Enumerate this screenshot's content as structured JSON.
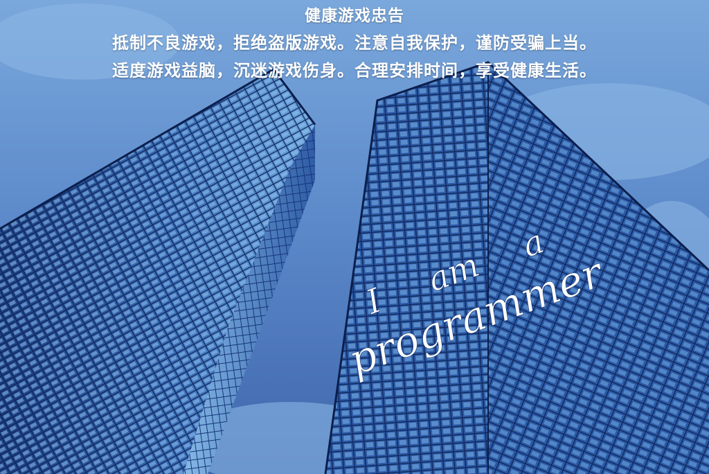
{
  "notice": {
    "title": "健康游戏忠告",
    "line1": "抵制不良游戏，拒绝盗版游戏。注意自我保护，谨防受骗上当。",
    "line2": "适度游戏益脑，沉迷游戏伤身。合理安排时间，享受健康生活。"
  },
  "slogan": {
    "word1": "I",
    "word2": "am",
    "word3": "a",
    "word4": "programmer"
  },
  "colors": {
    "sky": "#5a8fd0",
    "building_dark": "#1c3f86",
    "building_light": "#6aa6e0",
    "text": "#ffffff"
  }
}
